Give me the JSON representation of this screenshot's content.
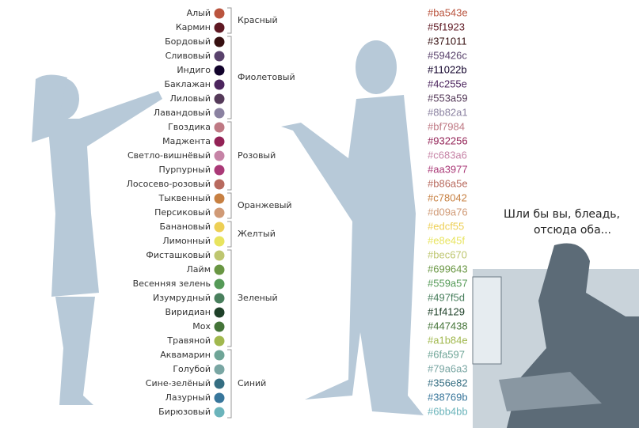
{
  "caption": {
    "line1": "Шли бы вы, блеадь,",
    "line2": "отсюда оба..."
  },
  "groups": [
    {
      "label": "Красный",
      "items": [
        {
          "name": "Алый",
          "hex": "#ba543e"
        },
        {
          "name": "Кармин",
          "hex": "#5f1923"
        }
      ]
    },
    {
      "label": "Фиолетовый",
      "items": [
        {
          "name": "Бордовый",
          "hex": "#371011"
        },
        {
          "name": "Сливовый",
          "hex": "#59426c"
        },
        {
          "name": "Индиго",
          "hex": "#11022b"
        },
        {
          "name": "Баклажан",
          "hex": "#4c255e"
        },
        {
          "name": "Лиловый",
          "hex": "#553a59"
        },
        {
          "name": "Лавандовый",
          "hex": "#8b82a1"
        }
      ]
    },
    {
      "label": "Розовый",
      "items": [
        {
          "name": "Гвоздика",
          "hex": "#bf7984"
        },
        {
          "name": "Маджента",
          "hex": "#932256"
        },
        {
          "name": "Светло-вишнёвый",
          "hex": "#c683a6"
        },
        {
          "name": "Пурпурный",
          "hex": "#aa3977"
        },
        {
          "name": "Лососево-розовый",
          "hex": "#b86a5e"
        }
      ]
    },
    {
      "label": "Оранжевый",
      "items": [
        {
          "name": "Тыквенный",
          "hex": "#c78042"
        },
        {
          "name": "Персиковый",
          "hex": "#d09a76"
        }
      ]
    },
    {
      "label": "Желтый",
      "items": [
        {
          "name": "Банановый",
          "hex": "#edcf55"
        },
        {
          "name": "Лимонный",
          "hex": "#e8e45f"
        }
      ]
    },
    {
      "label": "Зеленый",
      "items": [
        {
          "name": "Фисташковый",
          "hex": "#bec670"
        },
        {
          "name": "Лайм",
          "hex": "#699643"
        },
        {
          "name": "Весенняя зелень",
          "hex": "#559a57"
        },
        {
          "name": "Изумрудный",
          "hex": "#497f5d"
        },
        {
          "name": "Виридиан",
          "hex": "#1f4129"
        },
        {
          "name": "Мох",
          "hex": "#447438"
        },
        {
          "name": "Травяной",
          "hex": "#a1b84e"
        }
      ]
    },
    {
      "label": "Синий",
      "items": [
        {
          "name": "Аквамарин",
          "hex": "#6fa597"
        },
        {
          "name": "Голубой",
          "hex": "#79a6a3"
        },
        {
          "name": "Сине-зелёный",
          "hex": "#356e82"
        },
        {
          "name": "Лазурный",
          "hex": "#38769b"
        },
        {
          "name": "Бирюзовый",
          "hex": "#6bb4bb"
        }
      ]
    }
  ]
}
